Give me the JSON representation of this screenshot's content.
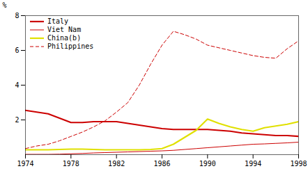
{
  "chart_data": {
    "type": "line",
    "ylabel": "%",
    "x": [
      1974,
      1975,
      1976,
      1977,
      1978,
      1979,
      1980,
      1981,
      1982,
      1983,
      1984,
      1985,
      1986,
      1987,
      1988,
      1989,
      1990,
      1991,
      1992,
      1993,
      1994,
      1995,
      1996,
      1997,
      1998
    ],
    "series": [
      {
        "name": "Italy",
        "color": "#cc0000",
        "line_style": "solid",
        "values": [
          2.55,
          2.45,
          2.35,
          2.1,
          1.85,
          1.85,
          1.9,
          1.9,
          1.9,
          1.8,
          1.7,
          1.6,
          1.5,
          1.45,
          1.45,
          1.45,
          1.45,
          1.4,
          1.35,
          1.25,
          1.2,
          1.15,
          1.1,
          1.1,
          1.05
        ]
      },
      {
        "name": "Viet Nam",
        "color": "#cc0000",
        "line_style": "solid",
        "values": [
          0.02,
          0.02,
          0.02,
          0.03,
          0.05,
          0.07,
          0.1,
          0.12,
          0.14,
          0.16,
          0.18,
          0.2,
          0.22,
          0.25,
          0.3,
          0.35,
          0.4,
          0.45,
          0.5,
          0.55,
          0.6,
          0.62,
          0.65,
          0.68,
          0.72
        ]
      },
      {
        "name": "China(b)",
        "color": "#e0e000",
        "line_style": "solid",
        "values": [
          0.28,
          0.28,
          0.28,
          0.3,
          0.32,
          0.32,
          0.3,
          0.28,
          0.28,
          0.28,
          0.28,
          0.3,
          0.35,
          0.6,
          1.0,
          1.4,
          2.05,
          1.8,
          1.6,
          1.45,
          1.35,
          1.55,
          1.65,
          1.75,
          1.9
        ]
      },
      {
        "name": "Philippines",
        "color": "#cc0000",
        "line_style": "dashed",
        "values": [
          0.35,
          0.5,
          0.6,
          0.8,
          1.05,
          1.3,
          1.6,
          1.95,
          2.45,
          3.0,
          4.0,
          5.2,
          6.3,
          7.1,
          6.9,
          6.65,
          6.3,
          6.15,
          6.0,
          5.85,
          5.7,
          5.6,
          5.55,
          6.1,
          6.55
        ]
      }
    ],
    "xlim": [
      1974,
      1998
    ],
    "ylim": [
      0,
      8
    ],
    "xticks": [
      1974,
      1978,
      1982,
      1986,
      1990,
      1994,
      1998
    ],
    "yticks": [
      2,
      4,
      6,
      8
    ],
    "legend": "upper left",
    "grid": false
  }
}
